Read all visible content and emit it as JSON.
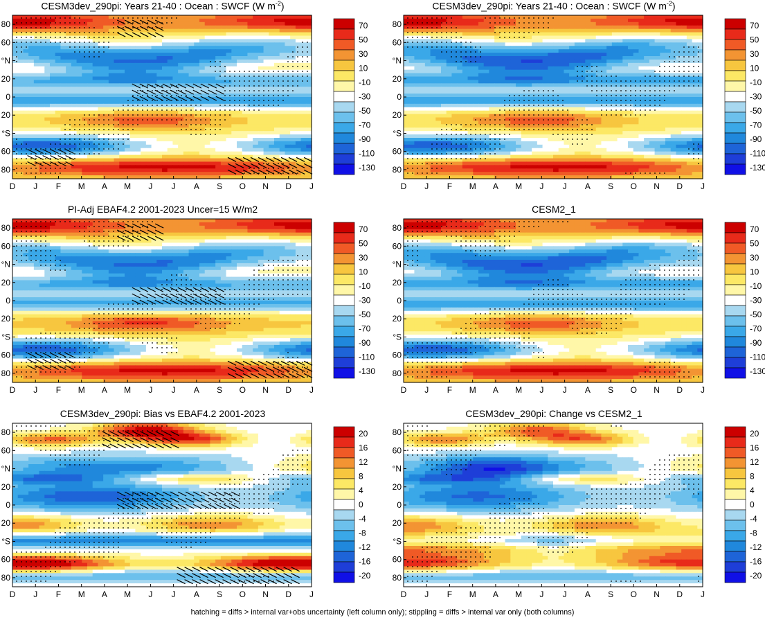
{
  "chart_data": [
    {
      "type": "heatmap",
      "title": "CESM3dev_290pi: Years 21-40 : Ocean : SWCF (W m$^{-2}$)",
      "title_text": "CESM3dev_290pi: Years 21-40 : Ocean : SWCF (W m",
      "title_sup": "-2",
      "title_tail": ")",
      "x_ticks": [
        "D",
        "J",
        "F",
        "M",
        "A",
        "M",
        "J",
        "J",
        "A",
        "S",
        "O",
        "N",
        "D",
        "J"
      ],
      "y_ticks": [
        "80",
        "60",
        "°N",
        "20",
        "0",
        "20",
        "°S",
        "60",
        "80"
      ],
      "colorbar": [
        "70",
        "50",
        "30",
        "10",
        "-10",
        "-30",
        "-50",
        "-70",
        "-90",
        "-110",
        "-130"
      ],
      "hatching": true,
      "stippling": true
    },
    {
      "type": "heatmap",
      "title": "CESM3dev_290pi: Years 21-40 : Ocean : SWCF (W m$^{-2}$)",
      "title_text": "CESM3dev_290pi: Years 21-40 : Ocean : SWCF (W m",
      "title_sup": "-2",
      "title_tail": ")",
      "x_ticks": [
        "D",
        "J",
        "F",
        "M",
        "A",
        "M",
        "J",
        "J",
        "A",
        "S",
        "O",
        "N",
        "D",
        "J"
      ],
      "y_ticks": [
        "80",
        "60",
        "°N",
        "20",
        "0",
        "20",
        "°S",
        "60",
        "80"
      ],
      "colorbar": [
        "70",
        "50",
        "30",
        "10",
        "-10",
        "-30",
        "-50",
        "-70",
        "-90",
        "-110",
        "-130"
      ],
      "hatching": false,
      "stippling": true
    },
    {
      "type": "heatmap",
      "title": "PI-Adj EBAF4.2 2001-2023 Uncer=15 W/m2",
      "title_text": "PI-Adj EBAF4.2 2001-2023 Uncer=15 W/m2",
      "title_sup": "",
      "title_tail": "",
      "x_ticks": [
        "D",
        "J",
        "F",
        "M",
        "A",
        "M",
        "J",
        "J",
        "A",
        "S",
        "O",
        "N",
        "D",
        "J"
      ],
      "y_ticks": [
        "80",
        "60",
        "°N",
        "20",
        "0",
        "20",
        "°S",
        "60",
        "80"
      ],
      "colorbar": [
        "70",
        "50",
        "30",
        "10",
        "-10",
        "-30",
        "-50",
        "-70",
        "-90",
        "-110",
        "-130"
      ],
      "hatching": true,
      "stippling": true
    },
    {
      "type": "heatmap",
      "title": "CESM2_1",
      "title_text": "CESM2_1",
      "title_sup": "",
      "title_tail": "",
      "x_ticks": [
        "D",
        "J",
        "F",
        "M",
        "A",
        "M",
        "J",
        "J",
        "A",
        "S",
        "O",
        "N",
        "D",
        "J"
      ],
      "y_ticks": [
        "80",
        "60",
        "°N",
        "20",
        "0",
        "20",
        "°S",
        "60",
        "80"
      ],
      "colorbar": [
        "70",
        "50",
        "30",
        "10",
        "-10",
        "-30",
        "-50",
        "-70",
        "-90",
        "-110",
        "-130"
      ],
      "hatching": false,
      "stippling": true
    },
    {
      "type": "heatmap",
      "title": "CESM3dev_290pi: Bias vs EBAF4.2 2001-2023",
      "title_text": "CESM3dev_290pi: Bias vs EBAF4.2 2001-2023",
      "title_sup": "",
      "title_tail": "",
      "x_ticks": [
        "D",
        "J",
        "F",
        "M",
        "A",
        "M",
        "J",
        "J",
        "A",
        "S",
        "O",
        "N",
        "D",
        "J"
      ],
      "y_ticks": [
        "80",
        "60",
        "°N",
        "20",
        "0",
        "20",
        "°S",
        "60",
        "80"
      ],
      "colorbar": [
        "20",
        "16",
        "12",
        "8",
        "4",
        "0",
        "-4",
        "-8",
        "-12",
        "-16",
        "-20"
      ],
      "hatching": true,
      "stippling": true
    },
    {
      "type": "heatmap",
      "title": "CESM3dev_290pi: Change vs CESM2_1",
      "title_text": "CESM3dev_290pi: Change vs CESM2_1",
      "title_sup": "",
      "title_tail": "",
      "x_ticks": [
        "D",
        "J",
        "F",
        "M",
        "A",
        "M",
        "J",
        "J",
        "A",
        "S",
        "O",
        "N",
        "D",
        "J"
      ],
      "y_ticks": [
        "80",
        "60",
        "°N",
        "20",
        "0",
        "20",
        "°S",
        "60",
        "80"
      ],
      "colorbar": [
        "20",
        "16",
        "12",
        "8",
        "4",
        "0",
        "-4",
        "-8",
        "-12",
        "-16",
        "-20"
      ],
      "hatching": false,
      "stippling": true
    }
  ],
  "colors": {
    "scale": [
      "#cc0000",
      "#e82a1a",
      "#f05a26",
      "#f39433",
      "#f7c63f",
      "#fce865",
      "#fff7a8",
      "#ffffff",
      "#a8d8f0",
      "#6cc0ec",
      "#3aa8e8",
      "#2088dc",
      "#1e64d8",
      "#1e3ed8",
      "#1010e6"
    ]
  },
  "footer": "hatching = diffs > internal var+obs uncertainty (left column only); stippling = diffs > internal var only (both columns)"
}
